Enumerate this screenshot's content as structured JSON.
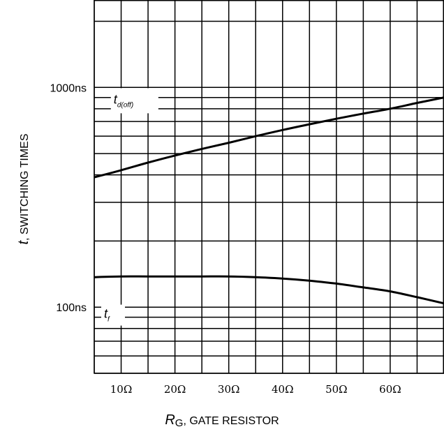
{
  "chart_data": {
    "type": "line",
    "xlabel": {
      "symbol": "R",
      "subscript": "G",
      "text": ", GATE RESISTOR"
    },
    "ylabel": {
      "symbol": "t",
      "text": ", SWITCHING TIMES"
    },
    "x_ticks": [
      {
        "value": 10,
        "label": "10Ω"
      },
      {
        "value": 20,
        "label": "20Ω"
      },
      {
        "value": 30,
        "label": "30Ω"
      },
      {
        "value": 40,
        "label": "40Ω"
      },
      {
        "value": 50,
        "label": "50Ω"
      },
      {
        "value": 60,
        "label": "60Ω"
      }
    ],
    "y_ticks": [
      {
        "value": 1000,
        "label": "1000ns"
      },
      {
        "value": 100,
        "label": "100ns"
      }
    ],
    "x_unit": "Ω",
    "y_unit": "ns",
    "xlim": [
      5,
      70
    ],
    "ylim": [
      50,
      2500
    ],
    "y_scale": "log",
    "x_gridlines": [
      5,
      10,
      15,
      20,
      25,
      30,
      35,
      40,
      45,
      50,
      55,
      60,
      65,
      70
    ],
    "y_gridlines": [
      50,
      60,
      70,
      80,
      90,
      100,
      200,
      300,
      400,
      500,
      600,
      700,
      800,
      900,
      1000,
      2000
    ],
    "grid": true,
    "series": [
      {
        "name": "t",
        "name_subscript": "d(off)",
        "x": [
          5,
          10,
          15,
          20,
          25,
          30,
          35,
          40,
          45,
          50,
          55,
          60,
          65,
          70
        ],
        "y": [
          390,
          420,
          455,
          490,
          525,
          560,
          600,
          640,
          680,
          720,
          760,
          800,
          850,
          900
        ]
      },
      {
        "name": "t",
        "name_subscript": "f",
        "x": [
          5,
          10,
          15,
          20,
          25,
          30,
          35,
          40,
          45,
          50,
          55,
          60,
          65,
          70
        ],
        "y": [
          137,
          138,
          138,
          138,
          138,
          138,
          137,
          135,
          132,
          128,
          123,
          118,
          111,
          104
        ]
      }
    ]
  }
}
